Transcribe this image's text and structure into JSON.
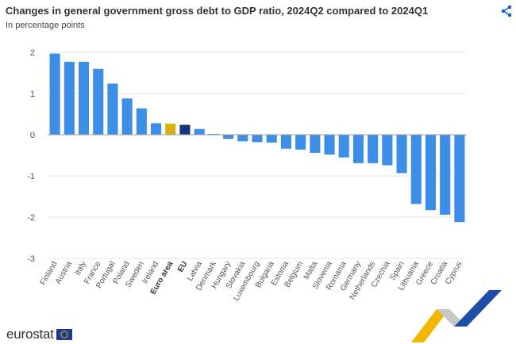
{
  "header": {
    "title": "Changes in general government gross debt to GDP ratio, 2024Q2 compared to 2024Q1",
    "subtitle": "In percentage points"
  },
  "share_icon": "share-icon",
  "logo": {
    "text": "eurostat",
    "flag_icon": "eu-flag-icon"
  },
  "colors": {
    "default_bar": "#3d8ee6",
    "euro_area_bar": "#d9b116",
    "eu_bar": "#14357a",
    "grid": "#e6e6e6",
    "axis": "#9aa0a6",
    "deco_yellow": "#f2b705",
    "deco_blue": "#1f4ea8",
    "deco_grey": "#c8c8c8"
  },
  "chart_data": {
    "type": "bar",
    "title": "Changes in general government gross debt to GDP ratio, 2024Q2 compared to 2024Q1",
    "subtitle": "In percentage points",
    "categories": [
      "Finland",
      "Austria",
      "Italy",
      "France",
      "Portugal",
      "Poland",
      "Sweden",
      "Ireland",
      "Euro area",
      "EU",
      "Latvia",
      "Denmark",
      "Hungary",
      "Slovakia",
      "Luxembourg",
      "Bulgaria",
      "Estonia",
      "Belgium",
      "Malta",
      "Slovenia",
      "Romania",
      "Germany",
      "Netherlands",
      "Czechia",
      "Spain",
      "Lithuania",
      "Greece",
      "Croatia",
      "Cyprus"
    ],
    "values": [
      1.97,
      1.77,
      1.77,
      1.6,
      1.24,
      0.88,
      0.64,
      0.28,
      0.27,
      0.24,
      0.14,
      0.02,
      -0.1,
      -0.16,
      -0.18,
      -0.19,
      -0.34,
      -0.36,
      -0.44,
      -0.48,
      -0.55,
      -0.69,
      -0.69,
      -0.74,
      -0.93,
      -1.68,
      -1.83,
      -1.94,
      -2.12
    ],
    "highlight": {
      "Euro area": "euro_area",
      "EU": "eu"
    },
    "bold_categories": [
      "Euro area",
      "EU"
    ],
    "ylim": [
      -3,
      2
    ],
    "yticks": [
      2,
      1,
      0,
      -1,
      -2,
      -3
    ],
    "grid": true,
    "legend": "none"
  }
}
